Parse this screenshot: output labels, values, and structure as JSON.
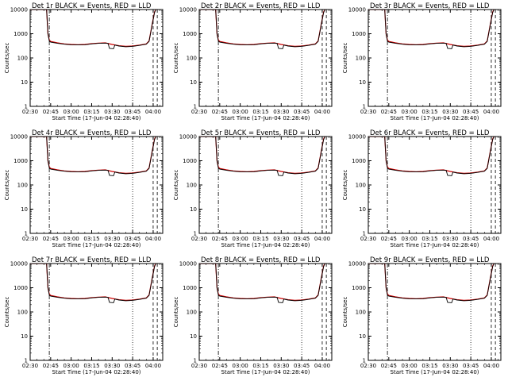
{
  "chart_data": {
    "type": "line",
    "y_scale": "log",
    "ylim": [
      1,
      10000
    ],
    "xlim": [
      "02:30",
      "04:07"
    ],
    "x_ticks": [
      "02:30",
      "02:45",
      "03:00",
      "03:15",
      "03:30",
      "03:45",
      "04:00"
    ],
    "y_ticks": [
      "1",
      "10",
      "100",
      "1000",
      "10000"
    ],
    "xlabel": "Start Time (17-Jun-04 02:28:40)",
    "ylabel": "Counts/sec",
    "grid": false,
    "series_colors": {
      "events": "#000000",
      "lld": "#cc0000"
    },
    "markers": {
      "dash_dot": "02:44",
      "dotted": "03:45",
      "dashed": [
        "04:00",
        "04:03"
      ]
    },
    "panels": [
      {
        "title": "Det 1r BLACK = Events, RED = LLD"
      },
      {
        "title": "Det 2r BLACK = Events, RED = LLD"
      },
      {
        "title": "Det 3r BLACK = Events, RED = LLD"
      },
      {
        "title": "Det 4r BLACK = Events, RED = LLD"
      },
      {
        "title": "Det 5r BLACK = Events, RED = LLD"
      },
      {
        "title": "Det 6r BLACK = Events, RED = LLD"
      },
      {
        "title": "Det 7r BLACK = Events, RED = LLD"
      },
      {
        "title": "Det 8r BLACK = Events, RED = LLD"
      },
      {
        "title": "Det 9r BLACK = Events, RED = LLD"
      }
    ],
    "series": [
      {
        "name": "LLD",
        "x": [
          "02:30",
          "02:42",
          "02:43",
          "02:44",
          "02:45",
          "02:50",
          "02:55",
          "03:00",
          "03:05",
          "03:10",
          "03:15",
          "03:20",
          "03:25",
          "03:30",
          "03:35",
          "03:40",
          "03:45",
          "03:50",
          "03:55",
          "03:57",
          "03:59",
          "04:01",
          "04:02"
        ],
        "values": [
          10000,
          10000,
          1000,
          550,
          480,
          420,
          380,
          360,
          350,
          360,
          390,
          410,
          420,
          360,
          320,
          300,
          310,
          340,
          380,
          500,
          2000,
          8000,
          10000
        ]
      },
      {
        "name": "Events",
        "x": [
          "02:30",
          "02:42",
          "02:43",
          "02:44",
          "02:45",
          "02:50",
          "02:55",
          "03:00",
          "03:05",
          "03:10",
          "03:15",
          "03:20",
          "03:25",
          "03:27",
          "03:28",
          "03:31",
          "03:32",
          "03:35",
          "03:40",
          "03:45",
          "03:50",
          "03:55",
          "03:57",
          "03:59",
          "04:01",
          "04:02"
        ],
        "values": [
          10000,
          10000,
          1000,
          500,
          450,
          400,
          370,
          350,
          345,
          350,
          380,
          400,
          410,
          400,
          250,
          240,
          340,
          310,
          290,
          300,
          330,
          370,
          480,
          1900,
          7500,
          10000
        ]
      }
    ]
  }
}
